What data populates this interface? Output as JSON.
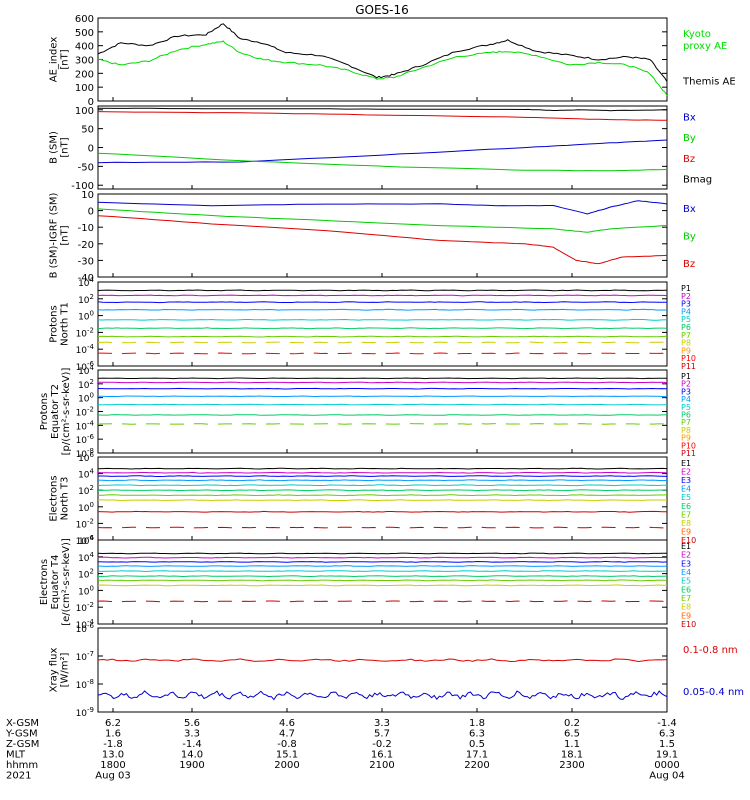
{
  "title": "GOES-16",
  "chart_data": [
    {
      "type": "line",
      "ylabel_lines": [
        "AE_index",
        "[nT]"
      ],
      "ylim": [
        0,
        600
      ],
      "yticks": [
        "0",
        "100",
        "200",
        "300",
        "400",
        "500",
        "600"
      ],
      "legend": [
        {
          "label_lines": [
            "Kyoto",
            "proxy AE"
          ],
          "color": "#00dd00"
        },
        {
          "label_lines": [
            "Themis AE"
          ],
          "color": "#000000"
        }
      ],
      "series": [
        {
          "color": "#000000",
          "x": [
            0,
            0.04,
            0.09,
            0.14,
            0.19,
            0.22,
            0.25,
            0.29,
            0.33,
            0.39,
            0.44,
            0.49,
            0.52,
            0.57,
            0.63,
            0.69,
            0.72,
            0.77,
            0.83,
            0.88,
            0.93,
            0.97,
            1.0
          ],
          "y": [
            340,
            420,
            400,
            470,
            480,
            560,
            450,
            420,
            350,
            330,
            260,
            170,
            190,
            260,
            360,
            410,
            440,
            360,
            330,
            300,
            320,
            300,
            140
          ]
        },
        {
          "color": "#00dd00",
          "x": [
            0,
            0.04,
            0.09,
            0.14,
            0.19,
            0.22,
            0.25,
            0.29,
            0.33,
            0.39,
            0.44,
            0.49,
            0.52,
            0.57,
            0.63,
            0.69,
            0.72,
            0.77,
            0.83,
            0.88,
            0.93,
            0.97,
            1.0
          ],
          "y": [
            300,
            260,
            290,
            370,
            410,
            430,
            350,
            300,
            280,
            260,
            220,
            160,
            170,
            240,
            320,
            350,
            360,
            330,
            260,
            280,
            260,
            200,
            40
          ]
        }
      ]
    },
    {
      "type": "line",
      "ylabel_lines": [
        "B (SM)",
        "[nT]"
      ],
      "ylim": [
        -110,
        110
      ],
      "yticks": [
        "-100",
        "-50",
        "0",
        "50",
        "100"
      ],
      "tick_values": [
        -100,
        -50,
        0,
        50,
        100
      ],
      "legend": [
        {
          "label_lines": [
            "Bx"
          ],
          "color": "#0000cc"
        },
        {
          "label_lines": [
            "By"
          ],
          "color": "#00cc00"
        },
        {
          "label_lines": [
            "Bz"
          ],
          "color": "#dd0000"
        },
        {
          "label_lines": [
            "Bmag"
          ],
          "color": "#000000"
        }
      ],
      "series": [
        {
          "color": "#000000",
          "x": [
            0,
            0.25,
            0.5,
            0.75,
            0.8,
            0.85,
            0.9,
            1.0
          ],
          "y": [
            104,
            103,
            102,
            101,
            98,
            100,
            98,
            100
          ]
        },
        {
          "color": "#dd0000",
          "x": [
            0,
            0.25,
            0.5,
            0.75,
            0.9,
            1.0
          ],
          "y": [
            95,
            92,
            86,
            80,
            74,
            72
          ]
        },
        {
          "color": "#0000cc",
          "x": [
            0,
            0.25,
            0.5,
            0.75,
            0.9,
            1.0
          ],
          "y": [
            -40,
            -38,
            -20,
            0,
            12,
            20
          ]
        },
        {
          "color": "#00cc00",
          "x": [
            0,
            0.25,
            0.5,
            0.75,
            0.9,
            1.0
          ],
          "y": [
            -15,
            -35,
            -50,
            -60,
            -62,
            -58
          ]
        }
      ]
    },
    {
      "type": "line",
      "ylabel_lines": [
        "B (SM)-IGRF (SM)",
        "[nT]"
      ],
      "ylim": [
        -40,
        10
      ],
      "yticks": [
        "-40",
        "-30",
        "-20",
        "-10",
        "0",
        "10"
      ],
      "legend": [
        {
          "label_lines": [
            "Bx"
          ],
          "color": "#0000cc"
        },
        {
          "label_lines": [
            "By"
          ],
          "color": "#00cc00"
        },
        {
          "label_lines": [
            "Bz"
          ],
          "color": "#dd0000"
        }
      ],
      "series": [
        {
          "color": "#0000cc",
          "x": [
            0,
            0.2,
            0.4,
            0.6,
            0.7,
            0.8,
            0.86,
            0.9,
            0.95,
            1.0
          ],
          "y": [
            5,
            3,
            4,
            4,
            3,
            3,
            -2,
            2,
            6,
            4
          ]
        },
        {
          "color": "#00cc00",
          "x": [
            0,
            0.2,
            0.4,
            0.6,
            0.8,
            0.86,
            0.9,
            1.0
          ],
          "y": [
            1,
            -3,
            -6,
            -9,
            -11,
            -13,
            -11,
            -9
          ]
        },
        {
          "color": "#dd0000",
          "x": [
            0,
            0.2,
            0.4,
            0.6,
            0.75,
            0.8,
            0.84,
            0.88,
            0.92,
            1.0
          ],
          "y": [
            -3,
            -8,
            -12,
            -18,
            -20,
            -22,
            -30,
            -32,
            -28,
            -27
          ]
        }
      ]
    },
    {
      "type": "line",
      "log": true,
      "ylabel_lines": [
        "Protons",
        "North T1"
      ],
      "ylim_exp": [
        -6,
        4
      ],
      "ytick_exps": [
        -6,
        -4,
        -2,
        0,
        2,
        4
      ],
      "channels": [
        "P1",
        "P2",
        "P3",
        "P4",
        "P5",
        "P6",
        "P7",
        "P8",
        "P9",
        "P10",
        "P11"
      ],
      "channel_colors": [
        "#000000",
        "#cc00cc",
        "#0000ff",
        "#0099ff",
        "#00cccc",
        "#00cc66",
        "#66cc00",
        "#cccc00",
        "#ff9900",
        "#ff0000",
        "#cc0000"
      ],
      "series": [
        {
          "color": "#000000",
          "level_exp": 3.0
        },
        {
          "color": "#cc00cc",
          "level_exp": 2.4
        },
        {
          "color": "#0000ff",
          "level_exp": 1.6
        },
        {
          "color": "#0099ff",
          "level_exp": 0.7
        },
        {
          "color": "#00cccc",
          "level_exp": -0.5
        },
        {
          "color": "#00cc66",
          "level_exp": -1.5
        },
        {
          "color": "#66cc00",
          "level_exp": -2.5
        },
        {
          "color": "#cccc00",
          "level_exp": -3.2,
          "dashed": true
        },
        {
          "color": "#ff0000",
          "level_exp": -4.5,
          "dashed": true
        }
      ]
    },
    {
      "type": "line",
      "log": true,
      "ylabel_lines": [
        "Protons",
        "Equator T2",
        "[p/(cm²-s-sr-keV)]"
      ],
      "ylim_exp": [
        -8,
        4
      ],
      "ytick_exps": [
        -8,
        -6,
        -4,
        -2,
        0,
        2,
        4
      ],
      "channels": [
        "P1",
        "P2",
        "P3",
        "P4",
        "P5",
        "P6",
        "P7",
        "P8",
        "P9",
        "P10",
        "P11"
      ],
      "channel_colors": [
        "#000000",
        "#cc00cc",
        "#0000ff",
        "#0099ff",
        "#00cccc",
        "#00cc66",
        "#66cc00",
        "#cccc00",
        "#ff9900",
        "#ff0000",
        "#cc0000"
      ],
      "series": [
        {
          "color": "#000000",
          "level_exp": 2.8
        },
        {
          "color": "#cc00cc",
          "level_exp": 2.2
        },
        {
          "color": "#0000ff",
          "level_exp": 1.3
        },
        {
          "color": "#0099ff",
          "level_exp": 0.2
        },
        {
          "color": "#00cccc",
          "level_exp": -1.0
        },
        {
          "color": "#00cc66",
          "level_exp": -2.5
        },
        {
          "color": "#66cc00",
          "level_exp": -3.8,
          "dashed": true
        }
      ]
    },
    {
      "type": "line",
      "log": true,
      "ylabel_lines": [
        "Electrons",
        "North T3"
      ],
      "ylim_exp": [
        -4,
        6
      ],
      "ytick_exps": [
        -4,
        -2,
        0,
        2,
        4,
        6
      ],
      "channels": [
        "E1",
        "E2",
        "E3",
        "E4",
        "E5",
        "E6",
        "E7",
        "E8",
        "E9",
        "E10"
      ],
      "channel_colors": [
        "#000000",
        "#cc00cc",
        "#0000ff",
        "#0099ff",
        "#00cccc",
        "#00cc66",
        "#66cc00",
        "#cccc00",
        "#ff6600",
        "#cc0000"
      ],
      "series": [
        {
          "color": "#000000",
          "level_exp": 4.6
        },
        {
          "color": "#cc00cc",
          "level_exp": 4.1
        },
        {
          "color": "#0000ff",
          "level_exp": 3.7
        },
        {
          "color": "#0099ff",
          "level_exp": 3.2
        },
        {
          "color": "#00cccc",
          "level_exp": 2.6
        },
        {
          "color": "#00cc66",
          "level_exp": 2.0
        },
        {
          "color": "#66cc00",
          "level_exp": 1.4
        },
        {
          "color": "#cccc00",
          "level_exp": 0.8
        },
        {
          "color": "#cc0000",
          "level_exp": -0.6
        },
        {
          "color": "#cc0000",
          "level_exp": -2.5,
          "dashed": true
        }
      ]
    },
    {
      "type": "line",
      "log": true,
      "ylabel_lines": [
        "Electrons",
        "Equator T4",
        "[e/(cm²-s-sr-keV)]"
      ],
      "ylim_exp": [
        -4,
        6
      ],
      "ytick_exps": [
        -4,
        -2,
        0,
        2,
        4,
        6
      ],
      "channels": [
        "E1",
        "E2",
        "E3",
        "E4",
        "E5",
        "E6",
        "E7",
        "E8",
        "E9",
        "E10"
      ],
      "channel_colors": [
        "#000000",
        "#cc00cc",
        "#0000ff",
        "#0099ff",
        "#00cccc",
        "#00cc66",
        "#66cc00",
        "#cccc00",
        "#ff6600",
        "#cc0000"
      ],
      "series": [
        {
          "color": "#000000",
          "level_exp": 4.4
        },
        {
          "color": "#cc00cc",
          "level_exp": 3.9
        },
        {
          "color": "#0000ff",
          "level_exp": 3.4
        },
        {
          "color": "#0099ff",
          "level_exp": 2.9
        },
        {
          "color": "#00cccc",
          "level_exp": 2.3
        },
        {
          "color": "#00cc66",
          "level_exp": 1.7
        },
        {
          "color": "#66cc00",
          "level_exp": 1.2
        },
        {
          "color": "#cccc00",
          "level_exp": 0.6
        },
        {
          "color": "#cc0000",
          "level_exp": -1.3,
          "dashed": true
        }
      ]
    },
    {
      "type": "line",
      "log": true,
      "ylabel_lines": [
        "Xray flux",
        "[W/m²]"
      ],
      "ylim_exp": [
        -9,
        -6
      ],
      "ytick_exps": [
        -9,
        -8,
        -7,
        -6
      ],
      "legend": [
        {
          "label_lines": [
            "0.1-0.8 nm"
          ],
          "color": "#dd0000"
        },
        {
          "label_lines": [
            "0.05-0.4 nm"
          ],
          "color": "#0000cc"
        }
      ],
      "series": [
        {
          "color": "#dd0000",
          "level_exp": -7.15
        },
        {
          "color": "#0000cc",
          "level_exp": -8.4,
          "noisy": true
        }
      ]
    }
  ],
  "x_axis": {
    "rows": [
      {
        "label": "X-GSM",
        "values": [
          "6.2",
          "5.6",
          "4.6",
          "3.3",
          "1.8",
          "0.2",
          "-1.4"
        ]
      },
      {
        "label": "Y-GSM",
        "values": [
          "1.6",
          "3.3",
          "4.7",
          "5.7",
          "6.3",
          "6.5",
          "6.3"
        ]
      },
      {
        "label": "Z-GSM",
        "values": [
          "-1.8",
          "-1.4",
          "-0.8",
          "-0.2",
          "0.5",
          "1.1",
          "1.5"
        ]
      },
      {
        "label": "MLT",
        "values": [
          "13.0",
          "14.0",
          "15.1",
          "16.1",
          "17.1",
          "18.1",
          "19.1"
        ]
      },
      {
        "label": "hhmm",
        "values": [
          "1800",
          "1900",
          "2000",
          "2100",
          "2200",
          "2300",
          "0000"
        ]
      },
      {
        "label": "2021",
        "values": [
          "Aug 03",
          "",
          "",
          "",
          "",
          "",
          "Aug 04"
        ]
      }
    ]
  }
}
